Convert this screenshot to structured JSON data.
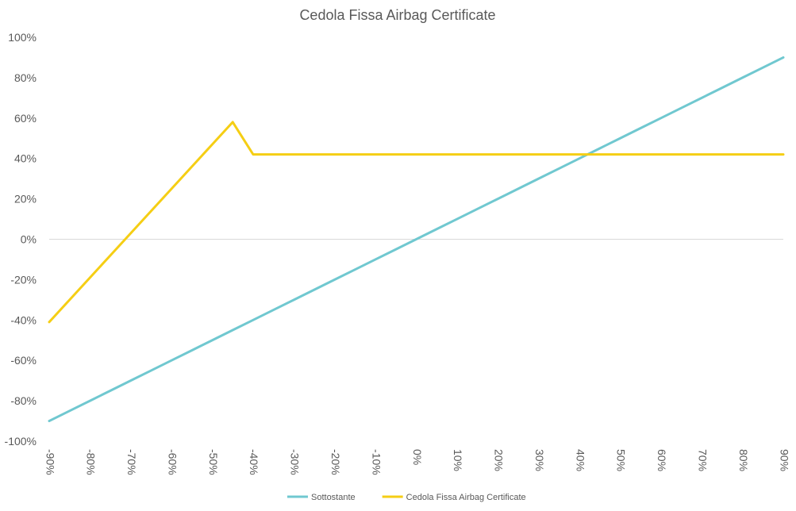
{
  "chart_data": {
    "type": "line",
    "title": "Cedola Fissa Airbag Certificate",
    "xlabel": "",
    "ylabel": "",
    "x": [
      -90,
      -85,
      -80,
      -75,
      -70,
      -65,
      -60,
      -55,
      -50,
      -45,
      -40,
      -35,
      -30,
      -25,
      -20,
      -15,
      -10,
      -5,
      0,
      5,
      10,
      15,
      20,
      25,
      30,
      35,
      40,
      45,
      50,
      55,
      60,
      65,
      70,
      75,
      80,
      85,
      90
    ],
    "xlim": [
      -90,
      90
    ],
    "ylim": [
      -100,
      100
    ],
    "x_ticks": [
      -90,
      -80,
      -70,
      -60,
      -50,
      -40,
      -30,
      -20,
      -10,
      0,
      10,
      20,
      30,
      40,
      50,
      60,
      70,
      80,
      90
    ],
    "x_tick_labels": [
      "-90%",
      "-80%",
      "-70%",
      "-60%",
      "-50%",
      "-40%",
      "-30%",
      "-20%",
      "-10%",
      "0%",
      "10%",
      "20%",
      "30%",
      "40%",
      "50%",
      "60%",
      "70%",
      "80%",
      "90%"
    ],
    "y_ticks": [
      100,
      80,
      60,
      40,
      20,
      0,
      -20,
      -40,
      -60,
      -80,
      -100
    ],
    "y_tick_labels": [
      "100%",
      "80%",
      "60%",
      "40%",
      "20%",
      "0%",
      "-20%",
      "-40%",
      "-60%",
      "-80%",
      "-100%"
    ],
    "grid": false,
    "zero_line": true,
    "legend_position": "bottom",
    "series": [
      {
        "name": "Sottostante",
        "color": "#70C8D0",
        "values": [
          -90,
          -85,
          -80,
          -75,
          -70,
          -65,
          -60,
          -55,
          -50,
          -45,
          -40,
          -35,
          -30,
          -25,
          -20,
          -15,
          -10,
          -5,
          0,
          5,
          10,
          15,
          20,
          25,
          30,
          35,
          40,
          45,
          50,
          55,
          60,
          65,
          70,
          75,
          80,
          85,
          90
        ]
      },
      {
        "name": "Cedola Fissa Airbag Certificate",
        "color": "#F5CE14",
        "values": [
          -41,
          -30,
          -19,
          -8,
          3,
          14,
          25,
          36,
          47,
          58,
          42,
          42,
          42,
          42,
          42,
          42,
          42,
          42,
          42,
          42,
          42,
          42,
          42,
          42,
          42,
          42,
          42,
          42,
          42,
          42,
          42,
          42,
          42,
          42,
          42,
          42,
          42
        ]
      }
    ]
  }
}
